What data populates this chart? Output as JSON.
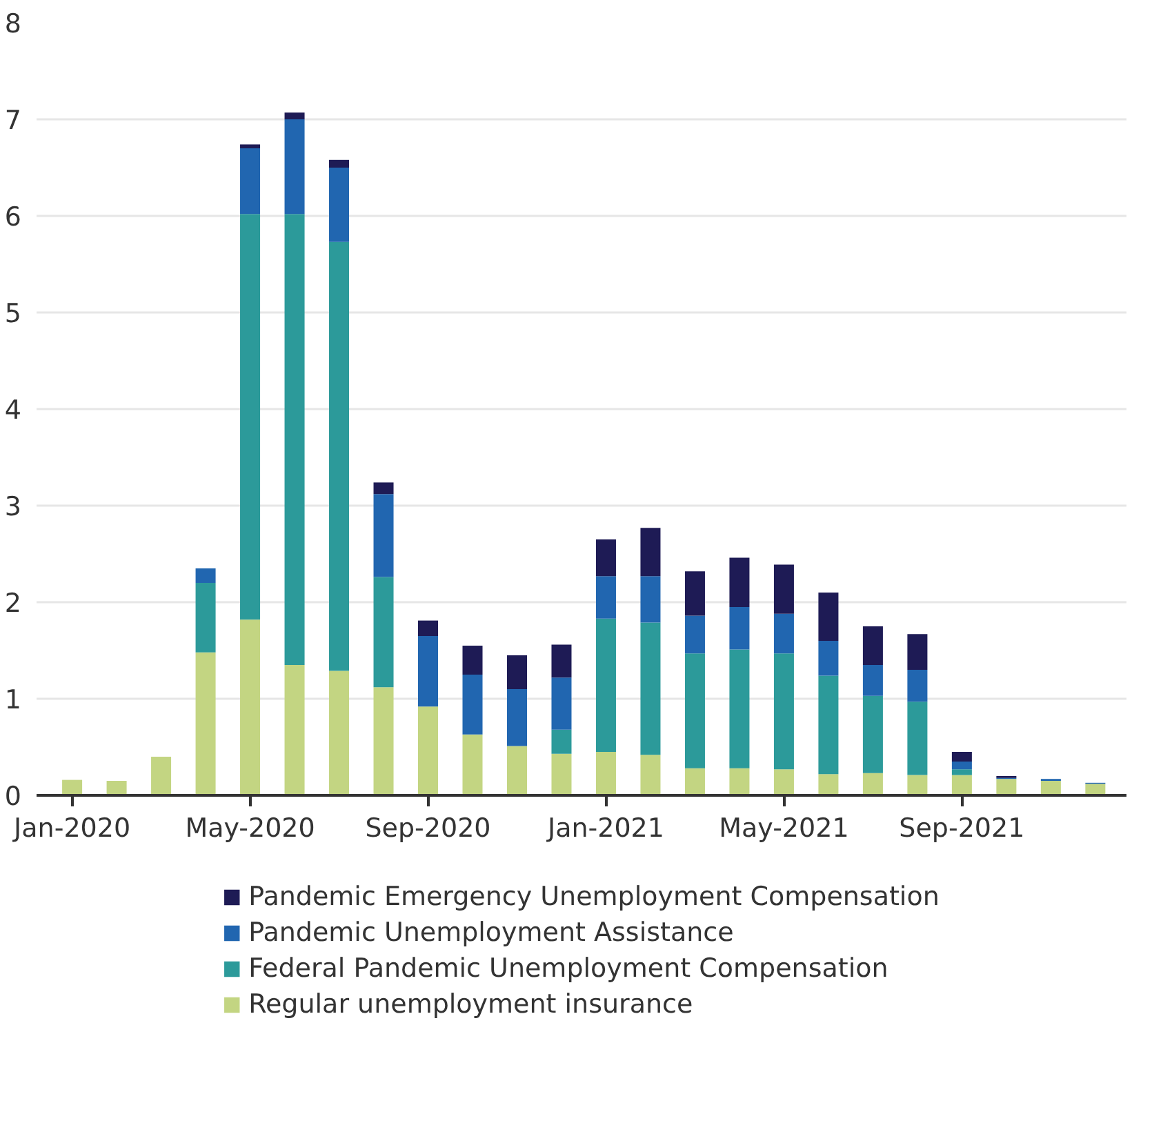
{
  "chart_data": {
    "type": "bar",
    "stacked": true,
    "categories": [
      "Jan-2020",
      null,
      null,
      null,
      "May-2020",
      null,
      null,
      null,
      "Sep-2020",
      null,
      null,
      null,
      "Jan-2021",
      null,
      null,
      null,
      "May-2021",
      null,
      null,
      null,
      "Sep-2021",
      null,
      null,
      null
    ],
    "series": [
      {
        "name": "Regular unemployment insurance",
        "color": "#c3d582",
        "values": [
          0.16,
          0.15,
          0.4,
          1.48,
          1.82,
          1.35,
          1.29,
          1.12,
          0.92,
          0.63,
          0.51,
          0.43,
          0.45,
          0.42,
          0.28,
          0.28,
          0.27,
          0.22,
          0.23,
          0.21,
          0.21,
          0.17,
          0.15,
          0.12
        ]
      },
      {
        "name": "Federal Pandemic Unemployment Compensation",
        "color": "#2c9a9a",
        "values": [
          0,
          0,
          0,
          0.72,
          4.2,
          4.67,
          4.44,
          1.14,
          0,
          0,
          0,
          0.25,
          1.38,
          1.37,
          1.19,
          1.23,
          1.2,
          1.02,
          0.8,
          0.76,
          0.06,
          0,
          0,
          0
        ]
      },
      {
        "name": "Pandemic Unemployment Assistance",
        "color": "#2166b0",
        "values": [
          0,
          0,
          0,
          0.15,
          0.68,
          0.98,
          0.77,
          0.86,
          0.73,
          0.62,
          0.59,
          0.54,
          0.44,
          0.48,
          0.39,
          0.44,
          0.41,
          0.36,
          0.32,
          0.33,
          0.08,
          0.01,
          0.02,
          0.01
        ]
      },
      {
        "name": "Pandemic Emergency Unemployment Compensation",
        "color": "#1e1b55",
        "values": [
          0,
          0,
          0,
          0,
          0.04,
          0.07,
          0.08,
          0.12,
          0.16,
          0.3,
          0.35,
          0.34,
          0.38,
          0.5,
          0.46,
          0.51,
          0.51,
          0.5,
          0.4,
          0.37,
          0.1,
          0.02,
          0,
          0
        ]
      }
    ],
    "ylim": [
      0,
      8
    ],
    "yticks": [
      0,
      1,
      2,
      3,
      4,
      5,
      6,
      7,
      8
    ],
    "grid": "y",
    "legend": "bottom"
  }
}
